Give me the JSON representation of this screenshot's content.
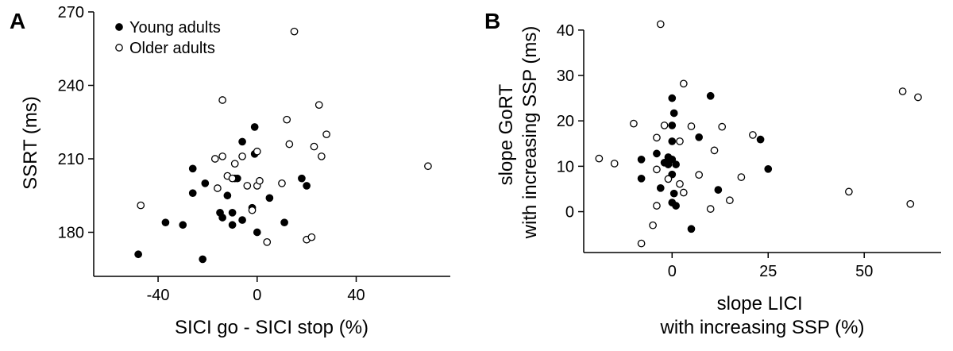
{
  "chart_data": [
    {
      "panel_label": "A",
      "type": "scatter",
      "xlabel": "SICI go - SICI stop (%)",
      "ylabel": "SSRT (ms)",
      "xlim": [
        -66,
        78
      ],
      "ylim": [
        162,
        270
      ],
      "xticks": [
        -40,
        0,
        40
      ],
      "yticks": [
        180,
        210,
        240,
        270
      ],
      "legend": {
        "placement": "top-left"
      },
      "series": [
        {
          "name": "Young adults",
          "marker": "filled-circle",
          "points": [
            [
              -48,
              171
            ],
            [
              -22,
              169
            ],
            [
              -37,
              184
            ],
            [
              -30,
              183
            ],
            [
              -26,
              206
            ],
            [
              -26,
              196
            ],
            [
              -21,
              200
            ],
            [
              -15,
              188
            ],
            [
              -14,
              186
            ],
            [
              -12,
              195
            ],
            [
              -10,
              188
            ],
            [
              -10,
              183
            ],
            [
              -9,
              202
            ],
            [
              -8,
              202
            ],
            [
              -6,
              217
            ],
            [
              -6,
              185
            ],
            [
              -1,
              212
            ],
            [
              -1,
              223
            ],
            [
              -2,
              190
            ],
            [
              0,
              180
            ],
            [
              5,
              194
            ],
            [
              11,
              184
            ],
            [
              18,
              202
            ],
            [
              20,
              199
            ]
          ]
        },
        {
          "name": "Older adults",
          "marker": "open-circle",
          "points": [
            [
              -47,
              191
            ],
            [
              -17,
              210
            ],
            [
              -16,
              198
            ],
            [
              -14,
              234
            ],
            [
              -14,
              211
            ],
            [
              -12,
              203
            ],
            [
              -10,
              202
            ],
            [
              -9,
              208
            ],
            [
              -6,
              211
            ],
            [
              -4,
              199
            ],
            [
              -2,
              189
            ],
            [
              0,
              213
            ],
            [
              0,
              199
            ],
            [
              1,
              201
            ],
            [
              4,
              176
            ],
            [
              10,
              200
            ],
            [
              12,
              226
            ],
            [
              13,
              216
            ],
            [
              15,
              262
            ],
            [
              20,
              177
            ],
            [
              22,
              178
            ],
            [
              23,
              215
            ],
            [
              25,
              232
            ],
            [
              26,
              211
            ],
            [
              28,
              220
            ],
            [
              69,
              207
            ]
          ]
        }
      ]
    },
    {
      "panel_label": "B",
      "type": "scatter",
      "xlabel": "slope LICI\nwith increasing SSP (%)",
      "ylabel": "slope GoRT\nwith increasing SSP (ms)",
      "xlim": [
        -23,
        70
      ],
      "ylim": [
        -9,
        44
      ],
      "xticks": [
        0,
        25,
        50
      ],
      "yticks": [
        0,
        10,
        20,
        30,
        40
      ],
      "series": [
        {
          "name": "Young adults",
          "marker": "filled-circle",
          "points": [
            [
              -8,
              11.5
            ],
            [
              -8,
              7.3
            ],
            [
              -4,
              12.8
            ],
            [
              -3,
              5.2
            ],
            [
              -2,
              10.8
            ],
            [
              -1,
              12.0
            ],
            [
              -1,
              10.4
            ],
            [
              0,
              19.0
            ],
            [
              0,
              15.5
            ],
            [
              0,
              11.5
            ],
            [
              0,
              8.2
            ],
            [
              0,
              2.0
            ],
            [
              0,
              25.0
            ],
            [
              0.5,
              21.7
            ],
            [
              0.5,
              4.0
            ],
            [
              1,
              10.4
            ],
            [
              1,
              1.3
            ],
            [
              5,
              -3.8
            ],
            [
              7,
              16.4
            ],
            [
              10,
              25.5
            ],
            [
              12,
              4.8
            ],
            [
              23,
              15.9
            ],
            [
              25,
              9.4
            ]
          ]
        },
        {
          "name": "Older adults",
          "marker": "open-circle",
          "points": [
            [
              -19,
              11.7
            ],
            [
              -15,
              10.6
            ],
            [
              -10,
              19.4
            ],
            [
              -8,
              -7.0
            ],
            [
              -5,
              -3.0
            ],
            [
              -4,
              16.3
            ],
            [
              -4,
              1.3
            ],
            [
              -4,
              9.3
            ],
            [
              -3,
              41.3
            ],
            [
              -2,
              19.0
            ],
            [
              -1,
              7.2
            ],
            [
              2,
              15.5
            ],
            [
              2,
              6.1
            ],
            [
              3,
              4.2
            ],
            [
              3,
              28.2
            ],
            [
              5,
              18.8
            ],
            [
              7,
              8.1
            ],
            [
              10,
              0.6
            ],
            [
              11,
              13.5
            ],
            [
              13,
              18.7
            ],
            [
              15,
              2.5
            ],
            [
              18,
              7.6
            ],
            [
              21,
              16.9
            ],
            [
              46,
              4.4
            ],
            [
              60,
              26.5
            ],
            [
              62,
              1.7
            ],
            [
              64,
              25.2
            ]
          ]
        }
      ]
    }
  ]
}
